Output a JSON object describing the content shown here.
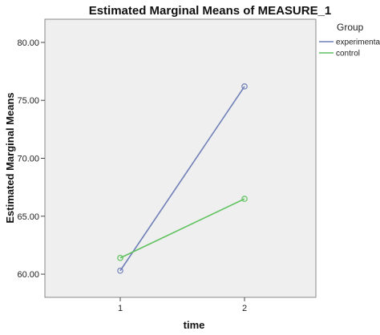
{
  "chart_data": {
    "type": "line",
    "title": "Estimated Marginal Means of MEASURE_1",
    "xlabel": "time",
    "ylabel": "Estimated Marginal Means",
    "categories": [
      "1",
      "2"
    ],
    "ylim": [
      58.0,
      82.0
    ],
    "yticks": [
      "60.00",
      "65.00",
      "70.00",
      "75.00",
      "80.00"
    ],
    "ytick_values": [
      60,
      65,
      70,
      75,
      80
    ],
    "grid": false,
    "legend": {
      "title": "Group",
      "placement": "top-right"
    },
    "series": [
      {
        "name": "experimental",
        "values": [
          60.3,
          76.2
        ],
        "color": "#6f7fb8"
      },
      {
        "name": "control",
        "values": [
          61.4,
          66.5
        ],
        "color": "#5fc25f"
      }
    ]
  }
}
